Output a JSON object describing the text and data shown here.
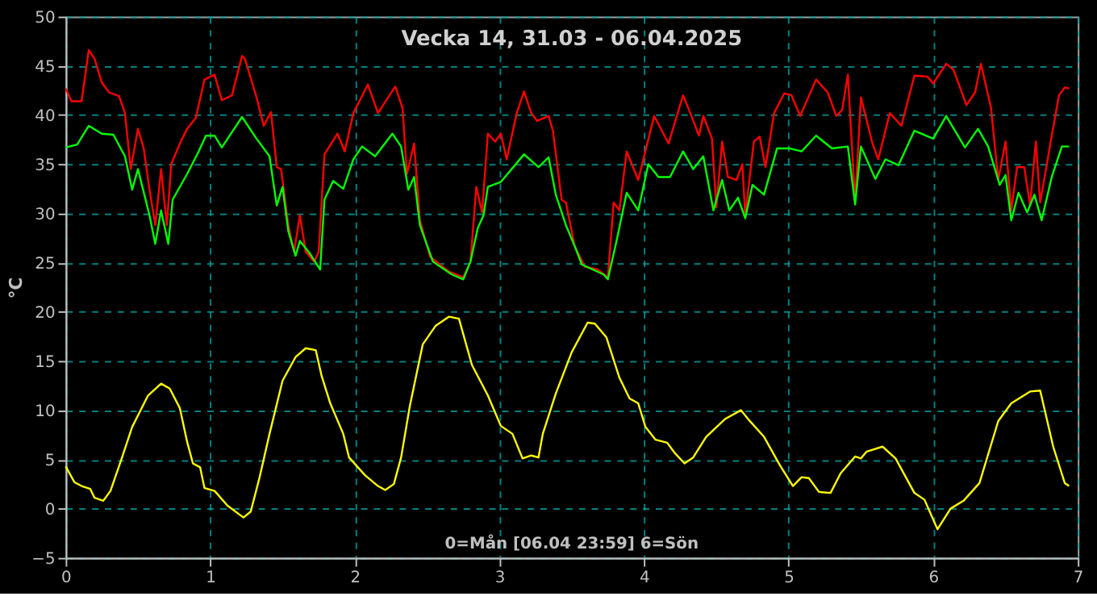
{
  "chart_data": {
    "type": "line",
    "title": "Vecka 14, 31.03 - 06.04.2025",
    "ylabel": "°C",
    "annotations": [
      "0=Mån [06.04 23:59] 6=Sön"
    ],
    "xlim": [
      0,
      7
    ],
    "xticks": [
      0,
      1,
      2,
      3,
      4,
      5,
      6,
      7
    ],
    "ylim": [
      -5,
      50
    ],
    "yticks": [
      -5,
      0,
      5,
      10,
      15,
      20,
      25,
      30,
      35,
      40,
      45,
      50
    ],
    "grid": true,
    "legend": false,
    "marker": "none",
    "line_style": "solid",
    "series": [
      {
        "color": "#ff0000",
        "x": [
          0,
          0.04,
          0.11,
          0.16,
          0.2,
          0.25,
          0.3,
          0.37,
          0.41,
          0.45,
          0.5,
          0.54,
          0.58,
          0.62,
          0.66,
          0.7,
          0.73,
          0.79,
          0.84,
          0.9,
          0.96,
          1.03,
          1.08,
          1.15,
          1.22,
          1.24,
          1.32,
          1.37,
          1.42,
          1.46,
          1.49,
          1.54,
          1.58,
          1.62,
          1.66,
          1.72,
          1.75,
          1.79,
          1.88,
          1.93,
          1.99,
          2.09,
          2.16,
          2.28,
          2.33,
          2.36,
          2.41,
          2.45,
          2.52,
          2.65,
          2.75,
          2.8,
          2.84,
          2.88,
          2.92,
          2.97,
          3.01,
          3.05,
          3.12,
          3.17,
          3.22,
          3.26,
          3.34,
          3.37,
          3.43,
          3.46,
          3.52,
          3.59,
          3.68,
          3.75,
          3.79,
          3.83,
          3.88,
          3.96,
          4.07,
          4.17,
          4.27,
          4.32,
          4.38,
          4.41,
          4.47,
          4.5,
          4.54,
          4.58,
          4.64,
          4.68,
          4.7,
          4.76,
          4.8,
          4.84,
          4.9,
          4.97,
          5.02,
          5.08,
          5.19,
          5.27,
          5.33,
          5.37,
          5.41,
          5.46,
          5.5,
          5.58,
          5.62,
          5.7,
          5.78,
          5.87,
          5.96,
          6.0,
          6.09,
          6.14,
          6.23,
          6.29,
          6.33,
          6.4,
          6.45,
          6.5,
          6.54,
          6.58,
          6.63,
          6.67,
          6.71,
          6.74,
          6.82,
          6.87,
          6.91,
          6.94
        ],
        "values": [
          42.7,
          41.4,
          41.4,
          46.6,
          45.7,
          43.3,
          42.3,
          41.9,
          40.2,
          34.5,
          38.6,
          36.6,
          32.4,
          28.8,
          34.5,
          28.8,
          35.0,
          37.1,
          38.6,
          39.7,
          43.6,
          44.1,
          41.5,
          42.0,
          46.0,
          45.7,
          41.8,
          38.9,
          40.3,
          34.7,
          34.5,
          28.8,
          26.1,
          29.8,
          26.1,
          25.1,
          26.1,
          36.0,
          38.1,
          36.3,
          40.2,
          43.1,
          40.2,
          42.9,
          40.7,
          34.0,
          37.1,
          29.3,
          25.6,
          24.1,
          23.5,
          25.1,
          32.7,
          30.1,
          38.1,
          37.3,
          38.1,
          35.5,
          40.2,
          42.4,
          40.2,
          39.4,
          39.9,
          38.4,
          31.4,
          31.1,
          26.7,
          24.6,
          24.3,
          23.5,
          31.1,
          30.3,
          36.3,
          33.4,
          39.9,
          37.1,
          42.0,
          40.2,
          37.9,
          39.9,
          37.6,
          30.6,
          37.3,
          33.7,
          33.4,
          35.0,
          29.8,
          37.3,
          37.8,
          34.7,
          40.2,
          42.2,
          42.0,
          39.9,
          43.6,
          42.3,
          39.9,
          40.5,
          44.1,
          31.1,
          41.8,
          37.1,
          35.5,
          40.2,
          38.9,
          44.0,
          43.9,
          43.2,
          45.2,
          44.6,
          41.0,
          42.3,
          45.2,
          40.7,
          33.4,
          37.3,
          30.3,
          34.7,
          34.7,
          30.8,
          37.3,
          31.1,
          37.9,
          42.0,
          42.8,
          42.7
        ]
      },
      {
        "color": "#00ff00",
        "x": [
          0,
          0.08,
          0.16,
          0.25,
          0.33,
          0.41,
          0.46,
          0.5,
          0.58,
          0.62,
          0.66,
          0.71,
          0.74,
          0.84,
          0.92,
          0.97,
          1.03,
          1.08,
          1.22,
          1.32,
          1.41,
          1.46,
          1.5,
          1.54,
          1.59,
          1.62,
          1.69,
          1.76,
          1.79,
          1.85,
          1.92,
          1.99,
          2.05,
          2.14,
          2.26,
          2.32,
          2.37,
          2.41,
          2.45,
          2.54,
          2.67,
          2.75,
          2.8,
          2.85,
          2.89,
          2.92,
          3.01,
          3.17,
          3.27,
          3.34,
          3.39,
          3.46,
          3.52,
          3.57,
          3.72,
          3.75,
          3.81,
          3.88,
          3.96,
          4.03,
          4.1,
          4.18,
          4.27,
          4.34,
          4.41,
          4.48,
          4.54,
          4.59,
          4.65,
          4.7,
          4.75,
          4.83,
          4.92,
          5.01,
          5.09,
          5.19,
          5.3,
          5.41,
          5.46,
          5.5,
          5.6,
          5.67,
          5.76,
          5.87,
          6.0,
          6.09,
          6.22,
          6.31,
          6.38,
          6.46,
          6.5,
          6.54,
          6.59,
          6.65,
          6.7,
          6.75,
          6.82,
          6.89,
          6.94
        ],
        "values": [
          36.7,
          37.0,
          38.9,
          38.1,
          38.0,
          35.8,
          32.4,
          34.5,
          29.8,
          26.9,
          30.3,
          26.9,
          31.4,
          34.0,
          36.3,
          37.9,
          37.9,
          36.7,
          39.8,
          37.6,
          35.8,
          30.8,
          32.7,
          28.2,
          25.7,
          27.2,
          25.9,
          24.3,
          31.4,
          33.3,
          32.5,
          35.5,
          36.8,
          35.8,
          38.1,
          36.8,
          32.4,
          33.7,
          28.8,
          25.1,
          23.8,
          23.3,
          25.1,
          28.5,
          29.8,
          32.7,
          33.2,
          36.0,
          34.7,
          35.7,
          31.9,
          28.8,
          26.7,
          24.8,
          23.8,
          23.3,
          27.2,
          32.1,
          30.3,
          35.0,
          33.7,
          33.7,
          36.3,
          34.5,
          35.8,
          30.3,
          33.4,
          30.3,
          31.6,
          29.5,
          32.9,
          31.9,
          36.6,
          36.6,
          36.3,
          37.9,
          36.6,
          36.8,
          30.9,
          36.8,
          33.5,
          35.5,
          34.9,
          38.4,
          37.6,
          39.9,
          36.7,
          38.6,
          36.8,
          32.9,
          33.9,
          29.3,
          32.1,
          30.1,
          31.9,
          29.3,
          33.7,
          36.8,
          36.8
        ]
      },
      {
        "color": "#ffff00",
        "x": [
          0,
          0.06,
          0.11,
          0.17,
          0.2,
          0.26,
          0.31,
          0.39,
          0.46,
          0.57,
          0.66,
          0.72,
          0.79,
          0.84,
          0.88,
          0.93,
          0.96,
          1.03,
          1.12,
          1.23,
          1.28,
          1.34,
          1.41,
          1.5,
          1.59,
          1.66,
          1.73,
          1.77,
          1.83,
          1.92,
          1.96,
          2.07,
          2.16,
          2.21,
          2.27,
          2.32,
          2.38,
          2.47,
          2.56,
          2.65,
          2.72,
          2.81,
          2.92,
          3.01,
          3.09,
          3.16,
          3.22,
          3.27,
          3.3,
          3.39,
          3.5,
          3.61,
          3.66,
          3.74,
          3.83,
          3.9,
          3.96,
          4.01,
          4.08,
          4.16,
          4.21,
          4.28,
          4.34,
          4.43,
          4.56,
          4.67,
          4.72,
          4.83,
          4.94,
          5.03,
          5.09,
          5.14,
          5.21,
          5.29,
          5.36,
          5.46,
          5.5,
          5.54,
          5.65,
          5.74,
          5.87,
          5.94,
          6.03,
          6.12,
          6.21,
          6.32,
          6.45,
          6.54,
          6.67,
          6.74,
          6.83,
          6.91,
          6.94
        ],
        "values": [
          4.3,
          2.7,
          2.3,
          2.0,
          1.1,
          0.8,
          1.8,
          5.2,
          8.3,
          11.5,
          12.7,
          12.2,
          10.2,
          6.8,
          4.6,
          4.2,
          2.1,
          1.8,
          0.3,
          -0.9,
          -0.3,
          3.1,
          7.6,
          13.0,
          15.4,
          16.3,
          16.1,
          13.5,
          10.7,
          7.6,
          5.2,
          3.4,
          2.3,
          1.9,
          2.5,
          5.2,
          10.4,
          16.7,
          18.6,
          19.5,
          19.3,
          14.6,
          11.5,
          8.4,
          7.6,
          5.1,
          5.4,
          5.2,
          7.6,
          11.7,
          15.9,
          18.9,
          18.8,
          17.4,
          13.3,
          11.2,
          10.7,
          8.3,
          7.0,
          6.7,
          5.7,
          4.6,
          5.2,
          7.3,
          9.1,
          10.0,
          9.1,
          7.3,
          4.4,
          2.3,
          3.2,
          3.1,
          1.7,
          1.6,
          3.6,
          5.3,
          5.1,
          5.8,
          6.3,
          5.1,
          1.6,
          0.9,
          -2.1,
          0.0,
          0.8,
          2.6,
          8.9,
          10.7,
          11.9,
          12.0,
          6.3,
          2.6,
          2.3
        ]
      }
    ]
  }
}
